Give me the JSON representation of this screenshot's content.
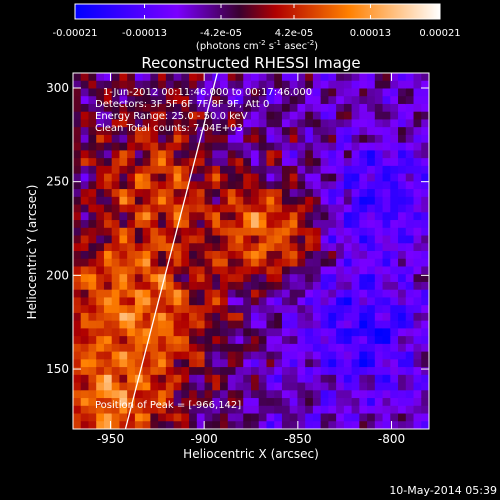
{
  "chart_data": {
    "type": "heatmap",
    "title": "Reconstructed RHESSI Image",
    "xlabel": "Heliocentric X (arcsec)",
    "ylabel": "Heliocentric Y (arcsec)",
    "xlim": [
      -970,
      -780
    ],
    "ylim": [
      118,
      308
    ],
    "xticks": [
      -950,
      -900,
      -850,
      -800
    ],
    "yticks": [
      150,
      200,
      250,
      300
    ],
    "colorbar": {
      "ticks": [
        "-0.00021",
        "-0.00013",
        "-4.2e-05",
        "4.2e-05",
        "0.00013",
        "0.00021"
      ],
      "range": [
        -0.00021,
        0.00021
      ],
      "unit_prefix": "(photons cm",
      "unit_exp1": "-2",
      "unit_mid": " s",
      "unit_exp2": "-1",
      "unit_mid2": " asec",
      "unit_exp3": "-2",
      "unit_suffix": ")"
    },
    "annotations": [
      "1-Jun-2012 00:11:46.000 to 00:17:46.000",
      "Detectors: 3F 5F 6F 7F 8F 9F, Att 0",
      "Energy Range: 25.0 - 50.0 keV",
      "Clean    Total counts: 7.04E+03"
    ],
    "peak_label": "Position of Peak = [-966,142]",
    "limb_line": [
      [
        -942,
        118
      ],
      [
        -893,
        308
      ]
    ],
    "footer_date": "10-May-2014 05:39"
  }
}
